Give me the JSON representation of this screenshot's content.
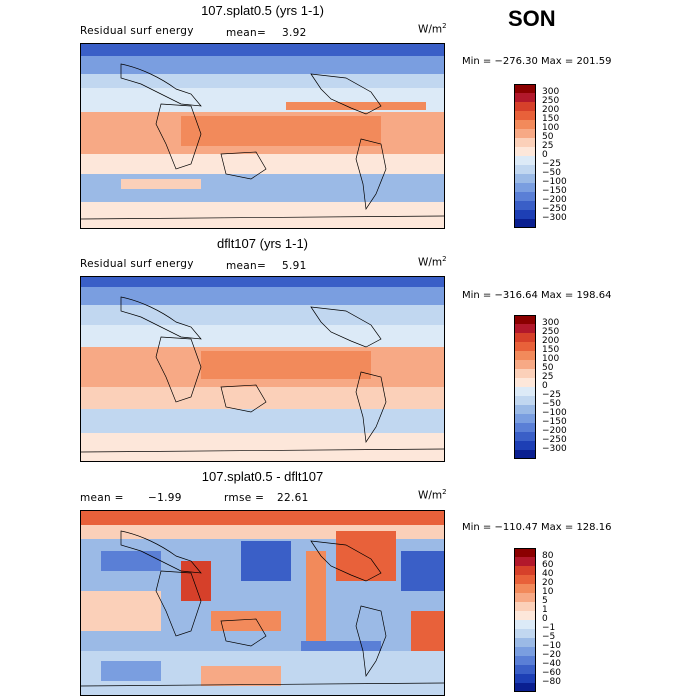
{
  "season": "SON",
  "panels": [
    {
      "title": "107.splat0.5 (yrs 1-1)",
      "field_label": "Residual surf energy",
      "stat1_label": "mean=",
      "stat1_value": "3.92",
      "units_base": "W/m",
      "units_exp": "2",
      "minmax": "Min = −276.30 Max = 201.59",
      "colorbar": {
        "colors": [
          "#8b0000",
          "#b2182b",
          "#d6402a",
          "#e8613a",
          "#f28a5b",
          "#f7a985",
          "#fbd0b9",
          "#fde7da",
          "#dceaf7",
          "#c1d7f0",
          "#9bbae6",
          "#7a9ee0",
          "#5a7fd6",
          "#3a5fc7",
          "#1d3fb5",
          "#0a1f90"
        ],
        "labels": [
          "300",
          "250",
          "200",
          "150",
          "100",
          "50",
          "25",
          "0",
          "−25",
          "−50",
          "−100",
          "−150",
          "−200",
          "−250",
          "−300"
        ]
      }
    },
    {
      "title": "dflt107 (yrs 1-1)",
      "field_label": "Residual surf energy",
      "stat1_label": "mean=",
      "stat1_value": "5.91",
      "units_base": "W/m",
      "units_exp": "2",
      "minmax": "Min = −316.64 Max = 198.64",
      "colorbar": {
        "colors": [
          "#8b0000",
          "#b2182b",
          "#d6402a",
          "#e8613a",
          "#f28a5b",
          "#f7a985",
          "#fbd0b9",
          "#fde7da",
          "#dceaf7",
          "#c1d7f0",
          "#9bbae6",
          "#7a9ee0",
          "#5a7fd6",
          "#3a5fc7",
          "#1d3fb5",
          "#0a1f90"
        ],
        "labels": [
          "300",
          "250",
          "200",
          "150",
          "100",
          "50",
          "25",
          "0",
          "−25",
          "−50",
          "−100",
          "−150",
          "−200",
          "−250",
          "−300"
        ]
      }
    },
    {
      "title": "107.splat0.5 - dflt107",
      "field_label": "mean =",
      "stat1_label": "",
      "stat1_value": "−1.99",
      "stat2_label": "rmse =",
      "stat2_value": "22.61",
      "units_base": "W/m",
      "units_exp": "2",
      "minmax": "Min = −110.47 Max = 128.16",
      "colorbar": {
        "colors": [
          "#8b0000",
          "#b2182b",
          "#d6402a",
          "#e8613a",
          "#f28a5b",
          "#f7a985",
          "#fbd0b9",
          "#fde7da",
          "#dceaf7",
          "#c1d7f0",
          "#9bbae6",
          "#7a9ee0",
          "#5a7fd6",
          "#3a5fc7",
          "#1d3fb5",
          "#0a1f90"
        ],
        "labels": [
          "80",
          "60",
          "40",
          "20",
          "10",
          "5",
          "1",
          "0",
          "−1",
          "−5",
          "−10",
          "−20",
          "−40",
          "−60",
          "−80"
        ]
      }
    }
  ]
}
